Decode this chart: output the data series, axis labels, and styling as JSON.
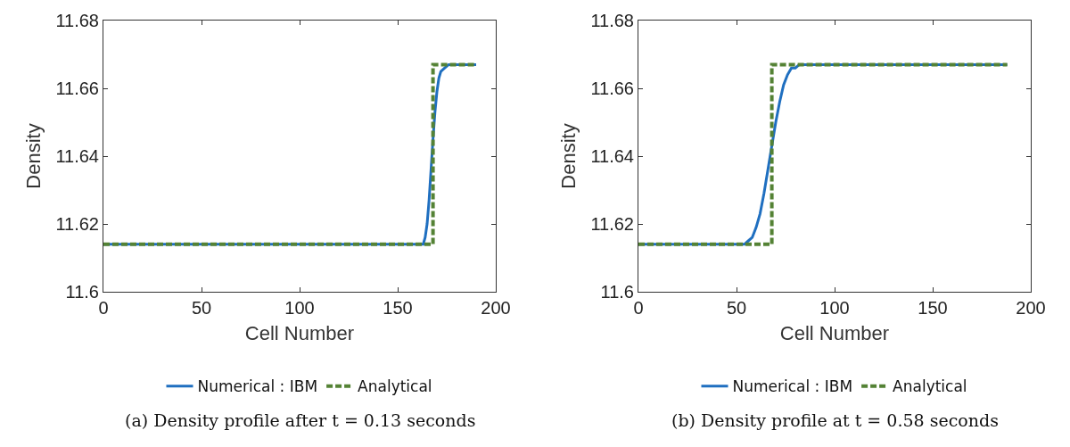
{
  "chart_data": [
    {
      "type": "line",
      "title": "(a) Density profile after t = 0.13 seconds",
      "xlabel": "Cell Number",
      "ylabel": "Density",
      "xlim": [
        0,
        200
      ],
      "xticks": [
        0,
        50,
        100,
        150,
        200
      ],
      "ylim": [
        11.6,
        11.68
      ],
      "yticks": [
        11.6,
        11.62,
        11.64,
        11.66,
        11.68
      ],
      "grid": false,
      "legend": "bottom",
      "marker": "none",
      "series": [
        {
          "name": "Numerical : IBM",
          "color": "#1f6fc0",
          "line_style": "solid",
          "x": [
            0,
            163,
            164,
            165,
            166,
            167,
            168,
            169,
            170,
            171,
            172,
            174,
            176,
            190
          ],
          "values": [
            11.614,
            11.614,
            11.616,
            11.62,
            11.627,
            11.636,
            11.645,
            11.653,
            11.659,
            11.663,
            11.665,
            11.666,
            11.667,
            11.667
          ]
        },
        {
          "name": "Analytical",
          "color": "#548235",
          "line_style": "dashed",
          "x": [
            0,
            168,
            168,
            190
          ],
          "values": [
            11.614,
            11.614,
            11.667,
            11.667
          ]
        }
      ]
    },
    {
      "type": "line",
      "title": "(b) Density profile at t = 0.58 seconds",
      "xlabel": "Cell Number",
      "ylabel": "Density",
      "xlim": [
        0,
        200
      ],
      "xticks": [
        0,
        50,
        100,
        150,
        200
      ],
      "ylim": [
        11.6,
        11.68
      ],
      "yticks": [
        11.6,
        11.62,
        11.64,
        11.66,
        11.68
      ],
      "grid": false,
      "legend": "bottom",
      "marker": "none",
      "series": [
        {
          "name": "Numerical : IBM",
          "color": "#1f6fc0",
          "line_style": "solid",
          "x": [
            0,
            54,
            56,
            58,
            60,
            62,
            64,
            66,
            68,
            70,
            72,
            74,
            76,
            78,
            80,
            82,
            188
          ],
          "values": [
            11.614,
            11.614,
            11.615,
            11.616,
            11.619,
            11.623,
            11.629,
            11.636,
            11.643,
            11.65,
            11.656,
            11.661,
            11.664,
            11.666,
            11.666,
            11.667,
            11.667
          ]
        },
        {
          "name": "Analytical",
          "color": "#548235",
          "line_style": "dashed",
          "x": [
            0,
            68,
            68,
            188
          ],
          "values": [
            11.614,
            11.614,
            11.667,
            11.667
          ]
        }
      ]
    }
  ]
}
